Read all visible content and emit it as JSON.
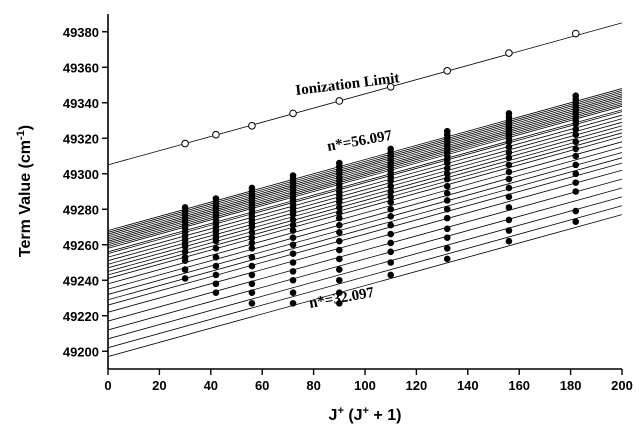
{
  "chart_data": {
    "type": "scatter",
    "title": "",
    "xlabel": {
      "main": "J",
      "sup1": "+",
      "mid": " (J",
      "sup2": "+",
      "end": " + 1)"
    },
    "ylabel": {
      "main": "Term Value (cm",
      "sup": "-1",
      "end": ")"
    },
    "xlim": [
      0,
      200
    ],
    "ylim": [
      49190,
      49390
    ],
    "xticks": [
      0,
      20,
      40,
      60,
      80,
      100,
      120,
      140,
      160,
      180,
      200
    ],
    "yticks": [
      49200,
      49220,
      49240,
      49260,
      49280,
      49300,
      49320,
      49340,
      49360,
      49380
    ],
    "grid": false,
    "x_points": [
      30,
      42,
      56,
      72,
      90,
      110,
      132,
      156,
      182
    ],
    "ionization_limit": {
      "label": "Ionization Limit",
      "intercept": 49305,
      "slope": 0.4,
      "values": [
        49317,
        49322,
        49327,
        49334,
        49341,
        49349,
        49358,
        49368,
        49379
      ]
    },
    "rydberg_series": {
      "n_min": 32.097,
      "n_max": 56.097,
      "n_min_label": "n*=32.097",
      "n_max_label": "n*=56.097",
      "line_intercepts": [
        49197,
        49202,
        49207,
        49212,
        49217,
        49222,
        49226,
        49229,
        49232,
        49235,
        49238,
        49241,
        49243,
        49245,
        49247,
        49249,
        49251,
        49253,
        49255,
        49256,
        49258,
        49259,
        49260,
        49261,
        49262,
        49263,
        49264,
        49265,
        49266,
        49267,
        49268
      ],
      "slope": 0.4,
      "points": [
        {
          "x": 30,
          "values": [
            49241,
            49246,
            49251,
            49253,
            49256,
            49259,
            49261,
            49263,
            49265,
            49267,
            49269,
            49271,
            49273,
            49275,
            49277,
            49279,
            49281
          ]
        },
        {
          "x": 42,
          "values": [
            49233,
            49238,
            49243,
            49248,
            49253,
            49258,
            49262,
            49264,
            49266,
            49268,
            49270,
            49272,
            49274,
            49276,
            49278,
            49280,
            49282,
            49284,
            49286
          ]
        },
        {
          "x": 56,
          "values": [
            49227,
            49233,
            49238,
            49243,
            49248,
            49253,
            49258,
            49261,
            49264,
            49267,
            49270,
            49272,
            49274,
            49276,
            49278,
            49280,
            49282,
            49284,
            49286,
            49288,
            49290,
            49292
          ]
        },
        {
          "x": 72,
          "values": [
            49227,
            49233,
            49240,
            49245,
            49250,
            49255,
            49260,
            49264,
            49268,
            49271,
            49274,
            49277,
            49279,
            49281,
            49283,
            49285,
            49287,
            49289,
            49291,
            49293,
            49295,
            49297,
            49299
          ]
        },
        {
          "x": 90,
          "values": [
            49227,
            49233,
            49240,
            49246,
            49252,
            49257,
            49262,
            49267,
            49271,
            49275,
            49278,
            49281,
            49284,
            49286,
            49288,
            49290,
            49292,
            49294,
            49296,
            49298,
            49300,
            49302,
            49304,
            49306
          ]
        },
        {
          "x": 110,
          "values": [
            49243,
            49250,
            49256,
            49261,
            49266,
            49271,
            49276,
            49280,
            49284,
            49287,
            49290,
            49293,
            49296,
            49298,
            49300,
            49302,
            49304,
            49306,
            49308,
            49310,
            49312,
            49314
          ]
        },
        {
          "x": 132,
          "values": [
            49252,
            49258,
            49264,
            49269,
            49275,
            49280,
            49285,
            49289,
            49293,
            49297,
            49300,
            49303,
            49306,
            49308,
            49310,
            49312,
            49314,
            49316,
            49318,
            49320,
            49322,
            49324
          ]
        },
        {
          "x": 156,
          "values": [
            49262,
            49268,
            49274,
            49281,
            49287,
            49292,
            49297,
            49301,
            49305,
            49309,
            49312,
            49315,
            49318,
            49320,
            49322,
            49324,
            49326,
            49328,
            49330,
            49332,
            49334
          ]
        },
        {
          "x": 182,
          "values": [
            49273,
            49279,
            49290,
            49295,
            49300,
            49305,
            49310,
            49314,
            49318,
            49322,
            49325,
            49328,
            49330,
            49332,
            49334,
            49336,
            49338,
            49340,
            49342,
            49344
          ]
        }
      ]
    }
  }
}
